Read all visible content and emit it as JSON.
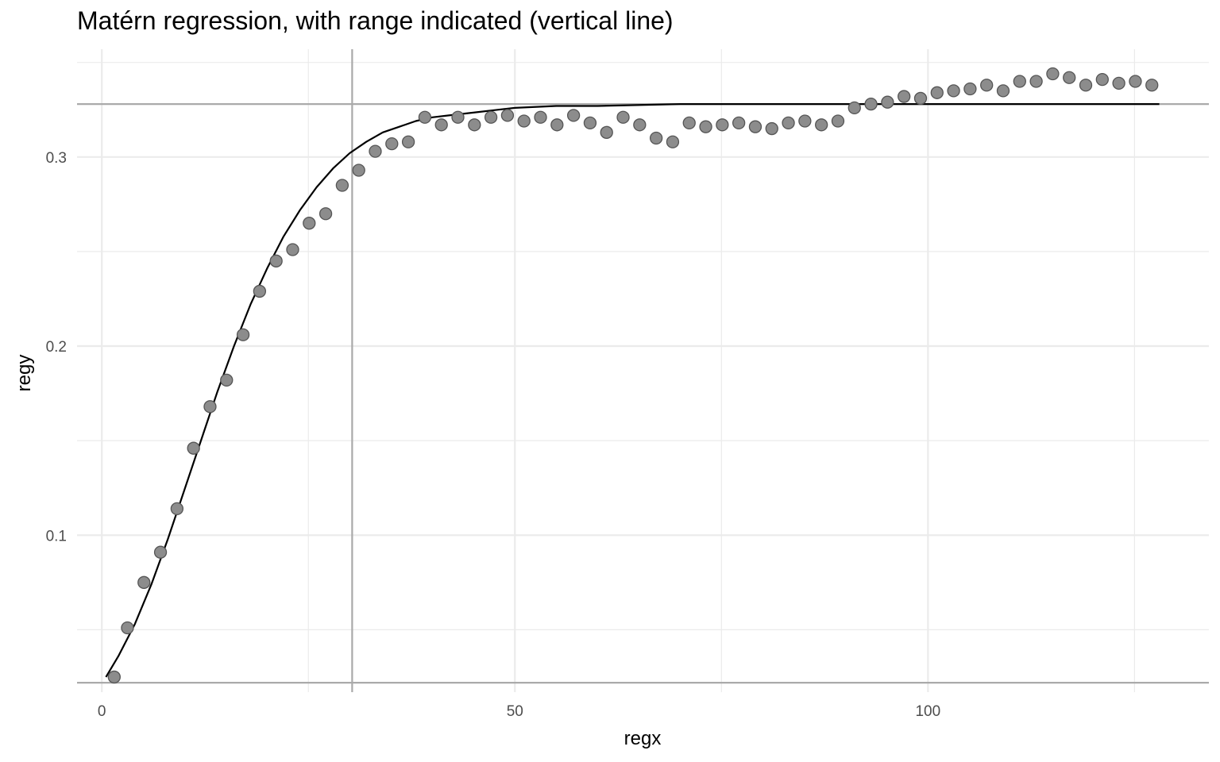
{
  "chart_data": {
    "type": "scatter",
    "title": "Matérn regression, with range indicated (vertical line)",
    "xlabel": "regx",
    "ylabel": "regy",
    "xlim": [
      -3,
      134
    ],
    "ylim": [
      0.017,
      0.357
    ],
    "x_ticks": [
      0,
      50,
      100
    ],
    "x_tick_labels": [
      "0",
      "50",
      "100"
    ],
    "y_ticks": [
      0.1,
      0.2,
      0.3
    ],
    "y_tick_labels": [
      "0.1",
      "0.2",
      "0.3"
    ],
    "grid": true,
    "colors": {
      "points": "#8c8c8c",
      "point_stroke": "#555555",
      "curve": "#000000",
      "reference_lines": "#aaaaaa",
      "grid": "#ebebeb"
    },
    "range_line_x": 30.3,
    "hline_y": [
      0.022,
      0.328
    ],
    "series": [
      {
        "type": "scatter",
        "x": [
          1.5,
          3.1,
          5.1,
          7.1,
          9.1,
          11.1,
          13.1,
          15.1,
          17.1,
          19.1,
          21.1,
          23.1,
          25.1,
          27.1,
          29.1,
          31.1,
          33.1,
          35.1,
          37.1,
          39.1,
          41.1,
          43.1,
          45.1,
          47.1,
          49.1,
          51.1,
          53.1,
          55.1,
          57.1,
          59.1,
          61.1,
          63.1,
          65.1,
          67.1,
          69.1,
          71.1,
          73.1,
          75.1,
          77.1,
          79.1,
          81.1,
          83.1,
          85.1,
          87.1,
          89.1,
          91.1,
          93.1,
          95.1,
          97.1,
          99.1,
          101.1,
          103.1,
          105.1,
          107.1,
          109.1,
          111.1,
          113.1,
          115.1,
          117.1,
          119.1,
          121.1,
          123.1,
          125.1,
          127.1
        ],
        "y": [
          0.025,
          0.051,
          0.075,
          0.091,
          0.114,
          0.146,
          0.168,
          0.182,
          0.206,
          0.229,
          0.245,
          0.251,
          0.265,
          0.27,
          0.285,
          0.293,
          0.303,
          0.307,
          0.308,
          0.321,
          0.317,
          0.321,
          0.317,
          0.321,
          0.322,
          0.319,
          0.321,
          0.317,
          0.322,
          0.318,
          0.313,
          0.321,
          0.317,
          0.31,
          0.308,
          0.318,
          0.316,
          0.317,
          0.318,
          0.316,
          0.315,
          0.318,
          0.319,
          0.317,
          0.319,
          0.326,
          0.328,
          0.329,
          0.332,
          0.331,
          0.334,
          0.335,
          0.336,
          0.338,
          0.335,
          0.34,
          0.34,
          0.344,
          0.342,
          0.338,
          0.341,
          0.339,
          0.34,
          0.338
        ]
      },
      {
        "type": "line",
        "x": [
          0.5,
          2,
          4,
          6,
          8,
          10,
          12,
          14,
          16,
          18,
          20,
          22,
          24,
          26,
          28,
          30,
          32,
          34,
          36,
          38,
          40,
          42,
          44,
          46,
          48,
          50,
          55,
          60,
          70,
          80,
          90,
          100,
          110,
          120,
          128
        ],
        "y": [
          0.025,
          0.036,
          0.053,
          0.074,
          0.098,
          0.124,
          0.15,
          0.176,
          0.2,
          0.222,
          0.241,
          0.258,
          0.272,
          0.284,
          0.294,
          0.302,
          0.308,
          0.313,
          0.316,
          0.319,
          0.321,
          0.322,
          0.323,
          0.324,
          0.325,
          0.326,
          0.327,
          0.327,
          0.328,
          0.328,
          0.328,
          0.328,
          0.328,
          0.328,
          0.328
        ]
      }
    ]
  }
}
